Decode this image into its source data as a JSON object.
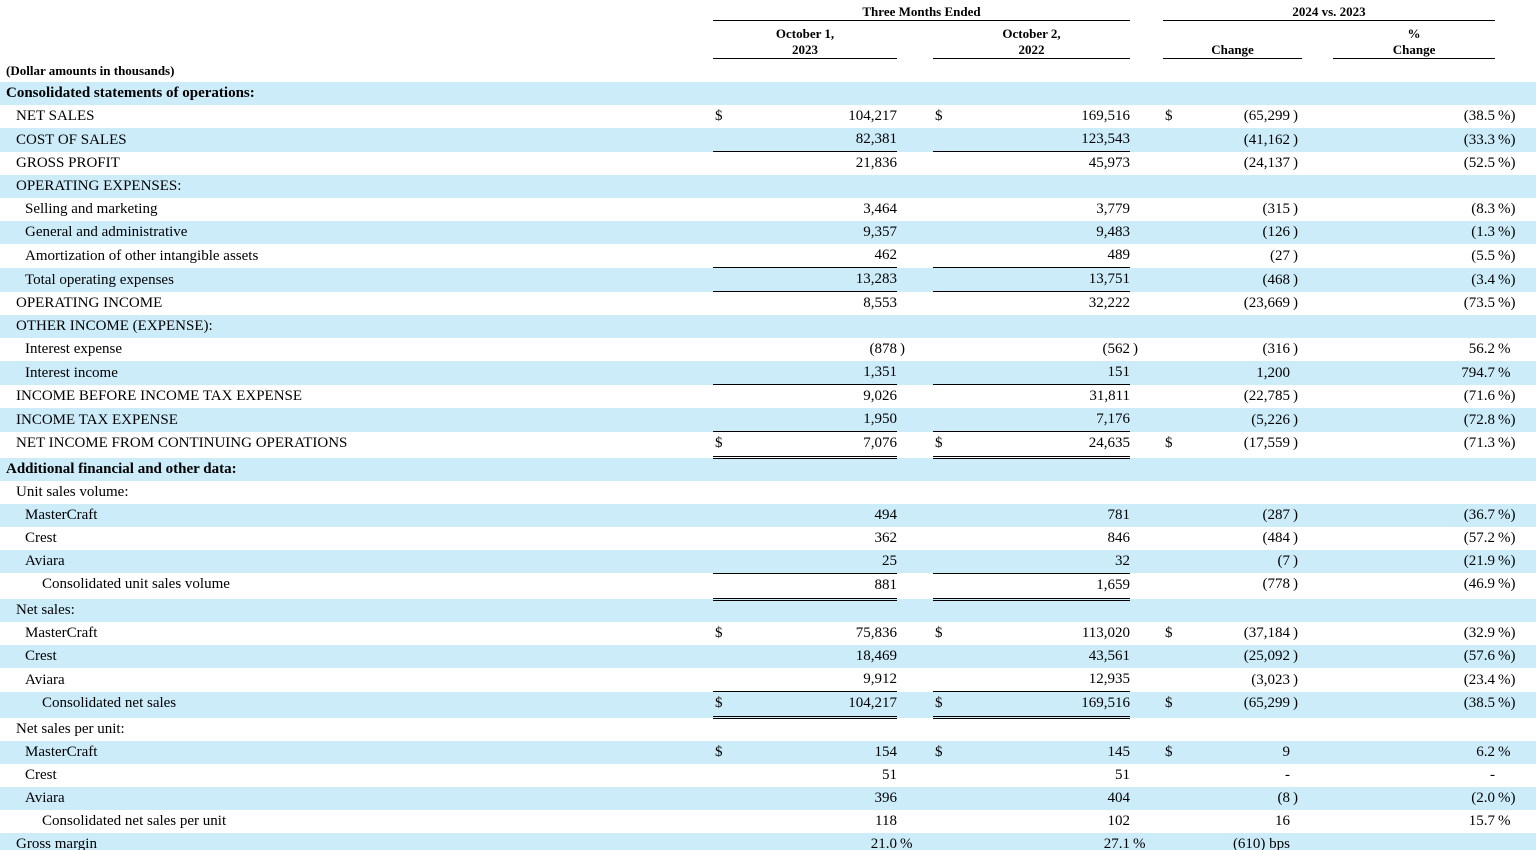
{
  "colors": {
    "row_highlight": "#cdecfa",
    "text": "#000000",
    "rule": "#000000"
  },
  "note": "(Dollar amounts in thousands)",
  "header": {
    "period_group": "Three Months Ended",
    "comparison_group": "2024 vs. 2023",
    "col_2023": [
      "October 1,",
      "2023"
    ],
    "col_2022": [
      "October 2,",
      "2022"
    ],
    "col_change": "Change",
    "col_pct_change": [
      "%",
      "Change"
    ]
  },
  "rows": [
    {
      "label": "Consolidated statements of operations:",
      "indent": 0,
      "bold": true,
      "shaded": true
    },
    {
      "label": "NET SALES",
      "indent": 1,
      "c1": [
        "$",
        "104,217",
        ""
      ],
      "c2": [
        "$",
        "169,516",
        ""
      ],
      "c3": [
        "$",
        "(65,299",
        ")"
      ],
      "c4": [
        "(38.5",
        "%)"
      ]
    },
    {
      "label": "COST OF SALES",
      "indent": 1,
      "shaded": true,
      "rule": "single",
      "c1": [
        "",
        "82,381",
        ""
      ],
      "c2": [
        "",
        "123,543",
        ""
      ],
      "c3": [
        "",
        "(41,162",
        ")"
      ],
      "c4": [
        "(33.3",
        "%)"
      ]
    },
    {
      "label": "GROSS PROFIT",
      "indent": 1,
      "c1": [
        "",
        "21,836",
        ""
      ],
      "c2": [
        "",
        "45,973",
        ""
      ],
      "c3": [
        "",
        "(24,137",
        ")"
      ],
      "c4": [
        "(52.5",
        "%)"
      ]
    },
    {
      "label": "OPERATING EXPENSES:",
      "indent": 1,
      "shaded": true
    },
    {
      "label": "Selling and marketing",
      "indent": 2,
      "c1": [
        "",
        "3,464",
        ""
      ],
      "c2": [
        "",
        "3,779",
        ""
      ],
      "c3": [
        "",
        "(315",
        ")"
      ],
      "c4": [
        "(8.3",
        "%)"
      ]
    },
    {
      "label": "General and administrative",
      "indent": 2,
      "shaded": true,
      "c1": [
        "",
        "9,357",
        ""
      ],
      "c2": [
        "",
        "9,483",
        ""
      ],
      "c3": [
        "",
        "(126",
        ")"
      ],
      "c4": [
        "(1.3",
        "%)"
      ]
    },
    {
      "label": "Amortization of other intangible assets",
      "indent": 2,
      "rule": "single",
      "c1": [
        "",
        "462",
        ""
      ],
      "c2": [
        "",
        "489",
        ""
      ],
      "c3": [
        "",
        "(27",
        ")"
      ],
      "c4": [
        "(5.5",
        "%)"
      ]
    },
    {
      "label": "Total operating expenses",
      "indent": 2,
      "shaded": true,
      "rule": "single",
      "c1": [
        "",
        "13,283",
        ""
      ],
      "c2": [
        "",
        "13,751",
        ""
      ],
      "c3": [
        "",
        "(468",
        ")"
      ],
      "c4": [
        "(3.4",
        "%)"
      ]
    },
    {
      "label": "OPERATING INCOME",
      "indent": 1,
      "c1": [
        "",
        "8,553",
        ""
      ],
      "c2": [
        "",
        "32,222",
        ""
      ],
      "c3": [
        "",
        "(23,669",
        ")"
      ],
      "c4": [
        "(73.5",
        "%)"
      ]
    },
    {
      "label": "OTHER INCOME (EXPENSE):",
      "indent": 1,
      "shaded": true
    },
    {
      "label": "Interest expense",
      "indent": 2,
      "c1": [
        "",
        "(878",
        ")"
      ],
      "c2": [
        "",
        "(562",
        ")"
      ],
      "c3": [
        "",
        "(316",
        ")"
      ],
      "c4": [
        "56.2",
        "%"
      ]
    },
    {
      "label": "Interest income",
      "indent": 2,
      "shaded": true,
      "rule": "single",
      "c1": [
        "",
        "1,351",
        ""
      ],
      "c2": [
        "",
        "151",
        ""
      ],
      "c3": [
        "",
        "1,200",
        ""
      ],
      "c4": [
        "794.7",
        "%"
      ]
    },
    {
      "label": "INCOME BEFORE INCOME TAX EXPENSE",
      "indent": 1,
      "c1": [
        "",
        "9,026",
        ""
      ],
      "c2": [
        "",
        "31,811",
        ""
      ],
      "c3": [
        "",
        "(22,785",
        ")"
      ],
      "c4": [
        "(71.6",
        "%)"
      ]
    },
    {
      "label": "INCOME TAX EXPENSE",
      "indent": 1,
      "shaded": true,
      "rule": "single",
      "c1": [
        "",
        "1,950",
        ""
      ],
      "c2": [
        "",
        "7,176",
        ""
      ],
      "c3": [
        "",
        "(5,226",
        ")"
      ],
      "c4": [
        "(72.8",
        "%)"
      ]
    },
    {
      "label": "NET INCOME FROM CONTINUING OPERATIONS",
      "indent": 1,
      "tall": true,
      "rule": "double",
      "c1": [
        "$",
        "7,076",
        ""
      ],
      "c2": [
        "$",
        "24,635",
        ""
      ],
      "c3": [
        "$",
        "(17,559",
        ")"
      ],
      "c4": [
        "(71.3",
        "%)"
      ]
    },
    {
      "label": "Additional financial and other data:",
      "indent": 0,
      "bold": true,
      "shaded": true
    },
    {
      "label": "Unit sales volume:",
      "indent": 1
    },
    {
      "label": "MasterCraft",
      "indent": 2,
      "shaded": true,
      "c1": [
        "",
        "494",
        ""
      ],
      "c2": [
        "",
        "781",
        ""
      ],
      "c3": [
        "",
        "(287",
        ")"
      ],
      "c4": [
        "(36.7",
        "%)"
      ]
    },
    {
      "label": "Crest",
      "indent": 2,
      "c1": [
        "",
        "362",
        ""
      ],
      "c2": [
        "",
        "846",
        ""
      ],
      "c3": [
        "",
        "(484",
        ")"
      ],
      "c4": [
        "(57.2",
        "%)"
      ]
    },
    {
      "label": "Aviara",
      "indent": 2,
      "shaded": true,
      "rule": "single",
      "c1": [
        "",
        "25",
        ""
      ],
      "c2": [
        "",
        "32",
        ""
      ],
      "c3": [
        "",
        "(7",
        ")"
      ],
      "c4": [
        "(21.9",
        "%)"
      ]
    },
    {
      "label": "Consolidated unit sales volume",
      "indent": 3,
      "tall": true,
      "rule": "double",
      "c1": [
        "",
        "881",
        ""
      ],
      "c2": [
        "",
        "1,659",
        ""
      ],
      "c3": [
        "",
        "(778",
        ")"
      ],
      "c4": [
        "(46.9",
        "%)"
      ]
    },
    {
      "label": "Net sales:",
      "indent": 1,
      "shaded": true
    },
    {
      "label": "MasterCraft",
      "indent": 2,
      "c1": [
        "$",
        "75,836",
        ""
      ],
      "c2": [
        "$",
        "113,020",
        ""
      ],
      "c3": [
        "$",
        "(37,184",
        ")"
      ],
      "c4": [
        "(32.9",
        "%)"
      ]
    },
    {
      "label": "Crest",
      "indent": 2,
      "shaded": true,
      "c1": [
        "",
        "18,469",
        ""
      ],
      "c2": [
        "",
        "43,561",
        ""
      ],
      "c3": [
        "",
        "(25,092",
        ")"
      ],
      "c4": [
        "(57.6",
        "%)"
      ]
    },
    {
      "label": "Aviara",
      "indent": 2,
      "rule": "single",
      "c1": [
        "",
        "9,912",
        ""
      ],
      "c2": [
        "",
        "12,935",
        ""
      ],
      "c3": [
        "",
        "(3,023",
        ")"
      ],
      "c4": [
        "(23.4",
        "%)"
      ]
    },
    {
      "label": "Consolidated net sales",
      "indent": 3,
      "shaded": true,
      "tall": true,
      "rule": "double",
      "c1": [
        "$",
        "104,217",
        ""
      ],
      "c2": [
        "$",
        "169,516",
        ""
      ],
      "c3": [
        "$",
        "(65,299",
        ")"
      ],
      "c4": [
        "(38.5",
        "%)"
      ]
    },
    {
      "label": "Net sales per unit:",
      "indent": 1
    },
    {
      "label": "MasterCraft",
      "indent": 2,
      "shaded": true,
      "c1": [
        "$",
        "154",
        ""
      ],
      "c2": [
        "$",
        "145",
        ""
      ],
      "c3": [
        "$",
        "9",
        ""
      ],
      "c4": [
        "6.2",
        "%"
      ]
    },
    {
      "label": "Crest",
      "indent": 2,
      "c1": [
        "",
        "51",
        ""
      ],
      "c2": [
        "",
        "51",
        ""
      ],
      "c3": [
        "",
        "-",
        ""
      ],
      "c4": [
        "-",
        ""
      ]
    },
    {
      "label": "Aviara",
      "indent": 2,
      "shaded": true,
      "c1": [
        "",
        "396",
        ""
      ],
      "c2": [
        "",
        "404",
        ""
      ],
      "c3": [
        "",
        "(8",
        ")"
      ],
      "c4": [
        "(2.0",
        "%)"
      ]
    },
    {
      "label": "Consolidated net sales per unit",
      "indent": 3,
      "c1": [
        "",
        "118",
        ""
      ],
      "c2": [
        "",
        "102",
        ""
      ],
      "c3": [
        "",
        "16",
        ""
      ],
      "c4": [
        "15.7",
        "%"
      ]
    },
    {
      "label": "Gross margin",
      "indent": 1,
      "shaded": true,
      "c1": [
        "",
        "21.0",
        "%"
      ],
      "c2": [
        "",
        "27.1",
        "%"
      ],
      "c3": [
        "",
        "(610) bps",
        ""
      ],
      "c4": [
        "",
        ""
      ]
    }
  ]
}
